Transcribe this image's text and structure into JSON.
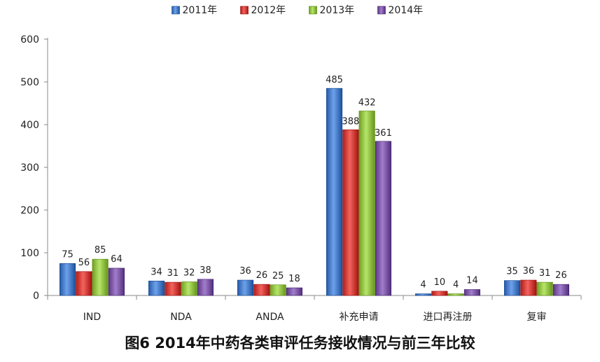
{
  "chart_data": {
    "type": "bar",
    "categories": [
      "IND",
      "NDA",
      "ANDA",
      "补充申请",
      "进口再注册",
      "复审"
    ],
    "series": [
      {
        "name": "2011年",
        "values": [
          75,
          34,
          36,
          485,
          4,
          35
        ],
        "color": "#4a7ec9"
      },
      {
        "name": "2012年",
        "values": [
          56,
          31,
          26,
          388,
          10,
          36
        ],
        "color": "#d2403c"
      },
      {
        "name": "2013年",
        "values": [
          85,
          32,
          25,
          432,
          4,
          31
        ],
        "color": "#93c247"
      },
      {
        "name": "2014年",
        "values": [
          64,
          38,
          18,
          361,
          14,
          26
        ],
        "color": "#7e5aa8"
      }
    ],
    "ylim": [
      0,
      600
    ],
    "yticks": [
      0,
      100,
      200,
      300,
      400,
      500,
      600
    ],
    "legend_position": "top",
    "grid": false,
    "caption": "图6  2014年中药各类审评任务接收情况与前三年比较"
  }
}
